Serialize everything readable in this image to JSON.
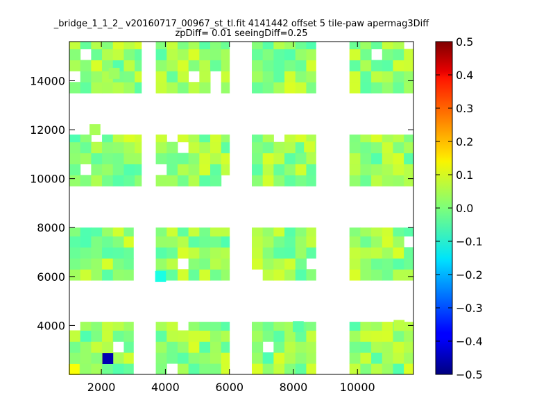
{
  "chart_data": {
    "type": "heatmap",
    "title": "_bridge_1_1_2_ v20160717_00967_st_tl.fit 4141442 offset 5 tile-paw apermag3Diff",
    "subtitle": "zpDiff= 0.01 seeingDiff=0.25",
    "xlabel": "",
    "ylabel": "",
    "xlim": [
      1000,
      11750
    ],
    "ylim": [
      2000,
      15600
    ],
    "x_ticks": [
      2000,
      4000,
      6000,
      8000,
      10000
    ],
    "y_ticks": [
      4000,
      6000,
      8000,
      10000,
      12000,
      14000
    ],
    "colorbar": {
      "range": [
        -0.5,
        0.5
      ],
      "colormap": "jet",
      "ticks": [
        "0.5",
        "0.4",
        "0.3",
        "0.2",
        "0.1",
        "0.0",
        "−0.1",
        "−0.2",
        "−0.3",
        "−0.4",
        "−0.5"
      ]
    },
    "grid": false,
    "cell_size": [
      340,
      450
    ],
    "background_value": 0.02,
    "regions": [
      {
        "x": [
          1000,
          3000
        ],
        "y": [
          2000,
          4150
        ]
      },
      {
        "x": [
          3700,
          6000
        ],
        "y": [
          2000,
          4150
        ]
      },
      {
        "x": [
          6700,
          8700
        ],
        "y": [
          2000,
          4150
        ]
      },
      {
        "x": [
          9750,
          11750
        ],
        "y": [
          2000,
          4150
        ]
      },
      {
        "x": [
          1000,
          3000
        ],
        "y": [
          5850,
          8000
        ]
      },
      {
        "x": [
          3700,
          6000
        ],
        "y": [
          5850,
          8000
        ]
      },
      {
        "x": [
          6700,
          8700
        ],
        "y": [
          5850,
          8000
        ]
      },
      {
        "x": [
          9750,
          11750
        ],
        "y": [
          5850,
          8000
        ]
      },
      {
        "x": [
          1000,
          3250
        ],
        "y": [
          9700,
          11800
        ]
      },
      {
        "x": [
          3700,
          6000
        ],
        "y": [
          9700,
          11800
        ]
      },
      {
        "x": [
          6700,
          8700
        ],
        "y": [
          9700,
          11800
        ]
      },
      {
        "x": [
          9750,
          11750
        ],
        "y": [
          9700,
          11800
        ]
      },
      {
        "x": [
          1000,
          3250
        ],
        "y": [
          13500,
          15600
        ]
      },
      {
        "x": [
          3700,
          6000
        ],
        "y": [
          13500,
          15600
        ]
      },
      {
        "x": [
          6700,
          8700
        ],
        "y": [
          13500,
          15600
        ]
      },
      {
        "x": [
          9750,
          11750
        ],
        "y": [
          13500,
          15600
        ]
      }
    ],
    "outliers": [
      {
        "x": 2200,
        "y": 2650,
        "value": -0.45
      },
      {
        "x": 1150,
        "y": 2200,
        "value": 0.12
      },
      {
        "x": 3850,
        "y": 6000,
        "value": -0.1
      },
      {
        "x": 1800,
        "y": 12000,
        "value": 0.04
      },
      {
        "x": 8500,
        "y": 11300,
        "value": 0.08
      },
      {
        "x": 8150,
        "y": 3950,
        "value": -0.04
      },
      {
        "x": 11300,
        "y": 4000,
        "value": 0.06
      },
      {
        "x": 2400,
        "y": 14300,
        "value": 0.03
      }
    ]
  }
}
